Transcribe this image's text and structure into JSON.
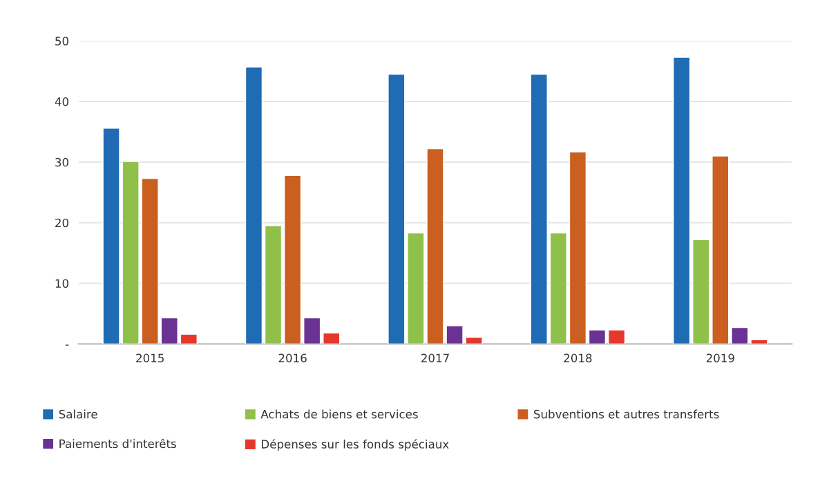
{
  "chart_data": {
    "type": "bar",
    "categories": [
      "2015",
      "2016",
      "2017",
      "2018",
      "2019"
    ],
    "series": [
      {
        "name": "Salaire",
        "color": "#1f6bb4",
        "values": [
          35.6,
          45.7,
          44.5,
          44.5,
          47.3
        ]
      },
      {
        "name": "Achats de biens et services",
        "color": "#8fc04a",
        "values": [
          30.1,
          19.5,
          18.3,
          18.3,
          17.2
        ]
      },
      {
        "name": "Subventions et autres transferts",
        "color": "#cb5f1f",
        "values": [
          27.3,
          27.8,
          32.2,
          31.7,
          31.0
        ]
      },
      {
        "name": "Paiements d'interêts",
        "color": "#6a3293",
        "values": [
          4.3,
          4.3,
          3.0,
          2.3,
          2.7
        ]
      },
      {
        "name": "Dépenses sur les fonds spéciaux",
        "color": "#e5382a",
        "values": [
          1.6,
          1.8,
          1.1,
          2.3,
          0.7
        ]
      }
    ],
    "ylim": [
      0,
      50
    ],
    "yticks": [
      {
        "value": 0,
        "label": "-"
      },
      10,
      20,
      30,
      40,
      50
    ],
    "grid": "y",
    "legend": "bottom"
  }
}
